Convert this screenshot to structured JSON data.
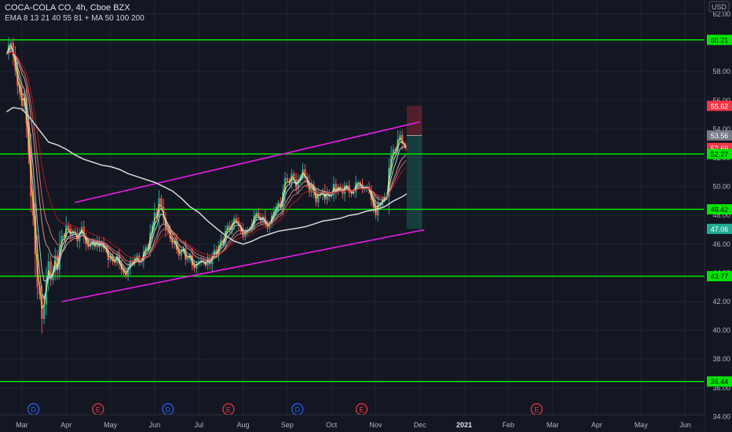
{
  "legend": {
    "title": "COCA-COLA CO, 4h, Cboe BZX",
    "indicators": "EMA 8 13 21 40 55 81 + MA 50 100 200"
  },
  "chart_data": {
    "type": "line",
    "currency": "USD",
    "ylim": [
      34,
      62
    ],
    "y_ticks": [
      "62.00",
      "60.00",
      "58.00",
      "56.00",
      "54.00",
      "52.00",
      "50.00",
      "48.00",
      "46.00",
      "44.00",
      "42.00",
      "40.00",
      "38.00",
      "36.00",
      "34.00"
    ],
    "x_ticks": [
      {
        "label": "Mar",
        "t": 0.0
      },
      {
        "label": "Apr",
        "t": 1.0
      },
      {
        "label": "May",
        "t": 2.0
      },
      {
        "label": "Jun",
        "t": 3.0
      },
      {
        "label": "Jul",
        "t": 4.0
      },
      {
        "label": "Aug",
        "t": 5.0
      },
      {
        "label": "Sep",
        "t": 6.0
      },
      {
        "label": "Oct",
        "t": 7.0
      },
      {
        "label": "Nov",
        "t": 8.0
      },
      {
        "label": "Dec",
        "t": 9.0
      },
      {
        "label": "2021",
        "t": 10.0
      },
      {
        "label": "Feb",
        "t": 11.0
      },
      {
        "label": "Mar",
        "t": 12.0
      },
      {
        "label": "Apr",
        "t": 13.0
      },
      {
        "label": "May",
        "t": 14.0
      },
      {
        "label": "Jun",
        "t": 15.0
      }
    ],
    "horizontal_levels": [
      60.21,
      52.27,
      48.42,
      43.77,
      36.44
    ],
    "price_labels": [
      {
        "text": "60.21",
        "value": 60.21,
        "color": "#00e600"
      },
      {
        "text": "55.62",
        "value": 55.62,
        "color": "#f23645"
      },
      {
        "text": "53.56",
        "value": 53.56,
        "color": "#787b86"
      },
      {
        "text": "52.69",
        "value": 52.69,
        "color": "#f23645"
      },
      {
        "text": "52.27",
        "value": 52.27,
        "color": "#00e600"
      },
      {
        "text": "48.42",
        "value": 48.42,
        "color": "#00e600"
      },
      {
        "text": "47.06",
        "value": 47.06,
        "color": "#22ab94"
      },
      {
        "text": "43.77",
        "value": 43.77,
        "color": "#00e600"
      },
      {
        "text": "36.44",
        "value": 36.44,
        "color": "#00e600"
      }
    ],
    "channel_lines": [
      {
        "x1": 1.2,
        "y1": 48.9,
        "x2": 9.0,
        "y2": 54.5
      },
      {
        "x1": 0.9,
        "y1": 42.0,
        "x2": 9.1,
        "y2": 47.0
      }
    ],
    "position_box": {
      "t_start": 8.7,
      "t_end": 9.05,
      "entry": 53.56,
      "stop": 55.62,
      "target": 47.06
    },
    "close": [
      [
        -0.35,
        59.2
      ],
      [
        -0.3,
        59.9
      ],
      [
        -0.25,
        60.0
      ],
      [
        -0.2,
        59.1
      ],
      [
        -0.15,
        58.1
      ],
      [
        -0.1,
        57.0
      ],
      [
        -0.05,
        56.5
      ],
      [
        0.0,
        55.6
      ],
      [
        0.05,
        56.2
      ],
      [
        0.1,
        54.4
      ],
      [
        0.15,
        52.2
      ],
      [
        0.2,
        49.3
      ],
      [
        0.25,
        48.0
      ],
      [
        0.3,
        45.3
      ],
      [
        0.35,
        43.0
      ],
      [
        0.4,
        42.5
      ],
      [
        0.45,
        40.8
      ],
      [
        0.5,
        41.8
      ],
      [
        0.55,
        43.5
      ],
      [
        0.6,
        44.8
      ],
      [
        0.65,
        43.5
      ],
      [
        0.7,
        44.1
      ],
      [
        0.75,
        45.2
      ],
      [
        0.8,
        44.2
      ],
      [
        0.85,
        45.9
      ],
      [
        0.9,
        46.6
      ],
      [
        0.95,
        46.5
      ],
      [
        1.0,
        47.3
      ],
      [
        1.05,
        47.1
      ],
      [
        1.1,
        46.6
      ],
      [
        1.15,
        46.9
      ],
      [
        1.2,
        46.8
      ],
      [
        1.25,
        46.2
      ],
      [
        1.3,
        46.8
      ],
      [
        1.35,
        47.2
      ],
      [
        1.4,
        46.5
      ],
      [
        1.45,
        46.0
      ],
      [
        1.5,
        45.8
      ],
      [
        1.55,
        45.9
      ],
      [
        1.6,
        46.2
      ],
      [
        1.65,
        45.8
      ],
      [
        1.7,
        46.2
      ],
      [
        1.75,
        45.8
      ],
      [
        1.8,
        46.1
      ],
      [
        1.85,
        45.7
      ],
      [
        1.9,
        45.6
      ],
      [
        1.95,
        44.9
      ],
      [
        2.0,
        45.1
      ],
      [
        2.05,
        44.8
      ],
      [
        2.1,
        44.7
      ],
      [
        2.15,
        45.2
      ],
      [
        2.2,
        44.6
      ],
      [
        2.25,
        44.2
      ],
      [
        2.3,
        44.0
      ],
      [
        2.35,
        43.8
      ],
      [
        2.4,
        44.3
      ],
      [
        2.45,
        44.8
      ],
      [
        2.5,
        44.7
      ],
      [
        2.55,
        45.0
      ],
      [
        2.6,
        45.2
      ],
      [
        2.65,
        44.7
      ],
      [
        2.7,
        44.8
      ],
      [
        2.75,
        45.5
      ],
      [
        2.8,
        45.8
      ],
      [
        2.85,
        45.7
      ],
      [
        2.9,
        46.8
      ],
      [
        2.95,
        47.3
      ],
      [
        3.0,
        48.2
      ],
      [
        3.05,
        47.9
      ],
      [
        3.1,
        49.2
      ],
      [
        3.15,
        48.6
      ],
      [
        3.2,
        47.8
      ],
      [
        3.25,
        47.0
      ],
      [
        3.3,
        46.9
      ],
      [
        3.35,
        46.4
      ],
      [
        3.4,
        46.0
      ],
      [
        3.45,
        46.2
      ],
      [
        3.5,
        45.6
      ],
      [
        3.55,
        45.2
      ],
      [
        3.6,
        45.5
      ],
      [
        3.65,
        45.7
      ],
      [
        3.7,
        44.9
      ],
      [
        3.75,
        45.0
      ],
      [
        3.8,
        45.2
      ],
      [
        3.85,
        44.5
      ],
      [
        3.9,
        44.3
      ],
      [
        3.95,
        44.6
      ],
      [
        4.0,
        44.7
      ],
      [
        4.05,
        44.9
      ],
      [
        4.1,
        44.8
      ],
      [
        4.15,
        44.5
      ],
      [
        4.2,
        45.0
      ],
      [
        4.25,
        44.6
      ],
      [
        4.3,
        45.2
      ],
      [
        4.35,
        45.6
      ],
      [
        4.4,
        45.3
      ],
      [
        4.45,
        45.9
      ],
      [
        4.5,
        46.3
      ],
      [
        4.55,
        46.1
      ],
      [
        4.6,
        46.9
      ],
      [
        4.65,
        47.3
      ],
      [
        4.7,
        47.0
      ],
      [
        4.75,
        47.4
      ],
      [
        4.8,
        47.8
      ],
      [
        4.85,
        47.6
      ],
      [
        4.9,
        47.3
      ],
      [
        4.95,
        47.0
      ],
      [
        5.0,
        46.5
      ],
      [
        5.05,
        46.8
      ],
      [
        5.1,
        47.0
      ],
      [
        5.15,
        47.1
      ],
      [
        5.2,
        47.4
      ],
      [
        5.25,
        48.0
      ],
      [
        5.3,
        48.2
      ],
      [
        5.35,
        47.9
      ],
      [
        5.4,
        47.6
      ],
      [
        5.45,
        47.9
      ],
      [
        5.5,
        47.4
      ],
      [
        5.55,
        47.1
      ],
      [
        5.6,
        47.4
      ],
      [
        5.65,
        48.0
      ],
      [
        5.7,
        48.3
      ],
      [
        5.75,
        48.6
      ],
      [
        5.8,
        48.9
      ],
      [
        5.85,
        48.6
      ],
      [
        5.9,
        49.6
      ],
      [
        5.95,
        50.6
      ],
      [
        6.0,
        50.4
      ],
      [
        6.05,
        50.3
      ],
      [
        6.1,
        50.9
      ],
      [
        6.15,
        50.5
      ],
      [
        6.2,
        49.9
      ],
      [
        6.25,
        50.5
      ],
      [
        6.3,
        50.7
      ],
      [
        6.35,
        51.2
      ],
      [
        6.4,
        50.7
      ],
      [
        6.45,
        50.3
      ],
      [
        6.5,
        49.6
      ],
      [
        6.55,
        50.1
      ],
      [
        6.6,
        49.6
      ],
      [
        6.65,
        48.9
      ],
      [
        6.7,
        49.5
      ],
      [
        6.75,
        49.4
      ],
      [
        6.8,
        49.7
      ],
      [
        6.85,
        49.1
      ],
      [
        6.9,
        49.6
      ],
      [
        6.95,
        49.3
      ],
      [
        7.0,
        49.4
      ],
      [
        7.05,
        50.2
      ],
      [
        7.1,
        49.6
      ],
      [
        7.15,
        50.0
      ],
      [
        7.2,
        49.9
      ],
      [
        7.25,
        49.5
      ],
      [
        7.3,
        50.1
      ],
      [
        7.35,
        50.1
      ],
      [
        7.4,
        49.6
      ],
      [
        7.45,
        49.5
      ],
      [
        7.5,
        49.6
      ],
      [
        7.55,
        50.3
      ],
      [
        7.6,
        50.3
      ],
      [
        7.65,
        50.2
      ],
      [
        7.7,
        49.8
      ],
      [
        7.75,
        49.9
      ],
      [
        7.8,
        50.0
      ],
      [
        7.85,
        49.7
      ],
      [
        7.9,
        49.1
      ],
      [
        7.95,
        48.6
      ],
      [
        8.0,
        48.0
      ],
      [
        8.05,
        48.8
      ],
      [
        8.1,
        48.7
      ],
      [
        8.15,
        49.1
      ],
      [
        8.2,
        49.3
      ],
      [
        8.25,
        49.3
      ],
      [
        8.3,
        51.3
      ],
      [
        8.35,
        52.2
      ],
      [
        8.4,
        52.6
      ],
      [
        8.45,
        52.5
      ],
      [
        8.5,
        53.3
      ],
      [
        8.55,
        53.6
      ],
      [
        8.6,
        53.0
      ],
      [
        8.65,
        52.8
      ],
      [
        8.68,
        52.69
      ]
    ],
    "ma_200": [
      [
        -0.35,
        55.2
      ],
      [
        -0.2,
        55.5
      ],
      [
        0.0,
        55.4
      ],
      [
        0.2,
        54.7
      ],
      [
        0.4,
        53.9
      ],
      [
        0.6,
        53.1
      ],
      [
        0.8,
        52.9
      ],
      [
        1.0,
        52.6
      ],
      [
        1.2,
        52.2
      ],
      [
        1.4,
        51.9
      ],
      [
        1.6,
        51.7
      ],
      [
        1.8,
        51.5
      ],
      [
        2.0,
        51.4
      ],
      [
        2.2,
        51.2
      ],
      [
        2.4,
        50.9
      ],
      [
        2.6,
        50.7
      ],
      [
        2.8,
        50.5
      ],
      [
        3.0,
        50.3
      ],
      [
        3.2,
        50.0
      ],
      [
        3.4,
        49.7
      ],
      [
        3.6,
        49.2
      ],
      [
        3.8,
        48.6
      ],
      [
        4.0,
        48.2
      ],
      [
        4.2,
        47.6
      ],
      [
        4.4,
        47.1
      ],
      [
        4.6,
        46.6
      ],
      [
        4.8,
        46.2
      ],
      [
        5.0,
        46.0
      ],
      [
        5.2,
        46.2
      ],
      [
        5.4,
        46.5
      ],
      [
        5.6,
        46.7
      ],
      [
        5.8,
        46.9
      ],
      [
        6.0,
        47.0
      ],
      [
        6.2,
        47.1
      ],
      [
        6.4,
        47.2
      ],
      [
        6.6,
        47.4
      ],
      [
        6.8,
        47.6
      ],
      [
        7.0,
        47.7
      ],
      [
        7.2,
        47.8
      ],
      [
        7.4,
        48.0
      ],
      [
        7.6,
        48.1
      ],
      [
        7.8,
        48.3
      ],
      [
        8.0,
        48.4
      ],
      [
        8.2,
        48.6
      ],
      [
        8.4,
        49.0
      ],
      [
        8.6,
        49.3
      ],
      [
        8.7,
        49.5
      ]
    ],
    "ema_colors": [
      "#ffeb3b",
      "#c8e6c9",
      "#b2dfdb",
      "#ef9a9a",
      "#e57373",
      "#b71c1c"
    ],
    "events": [
      {
        "label": "D",
        "t": 0.26,
        "kind": "dividend"
      },
      {
        "label": "E",
        "t": 1.72,
        "kind": "earnings"
      },
      {
        "label": "D",
        "t": 3.3,
        "kind": "dividend"
      },
      {
        "label": "E",
        "t": 4.67,
        "kind": "earnings"
      },
      {
        "label": "D",
        "t": 6.23,
        "kind": "dividend"
      },
      {
        "label": "E",
        "t": 7.68,
        "kind": "earnings"
      },
      {
        "label": "E",
        "t": 11.64,
        "kind": "earnings"
      }
    ],
    "colors": {
      "background": "#131722",
      "grid": "#1f2433",
      "level": "#00e600",
      "channel": "#e81ce8",
      "ma_200": "#d9d9d9",
      "candle_up": "#26a69a",
      "candle_down": "#ef5350",
      "stop_zone": "rgba(242,54,69,0.28)",
      "target_zone": "rgba(34,171,148,0.25)"
    }
  }
}
